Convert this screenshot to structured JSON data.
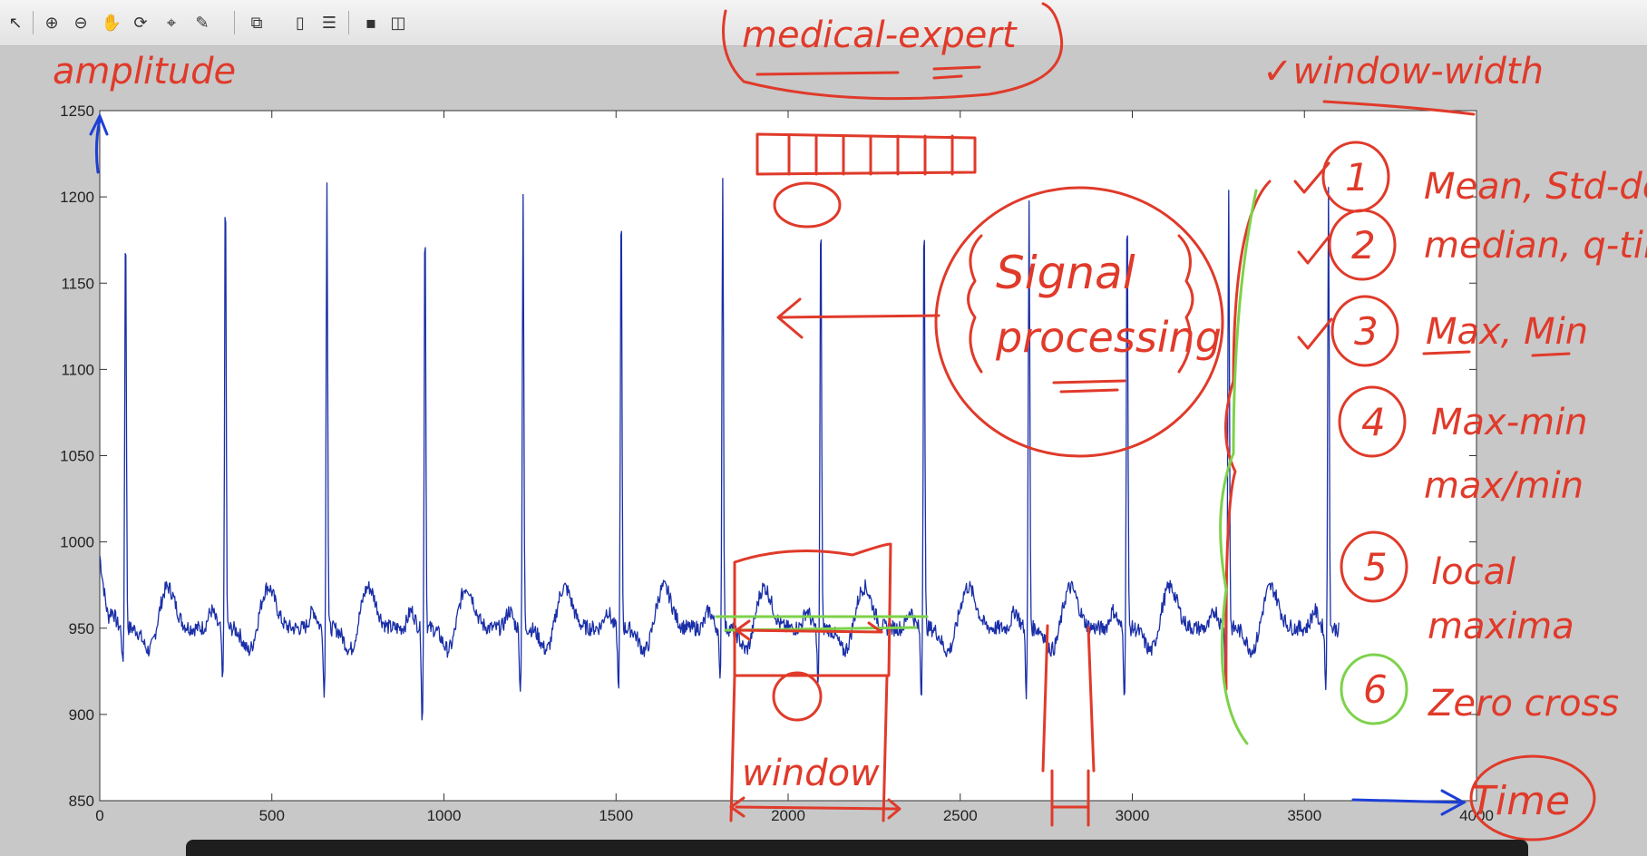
{
  "toolbar": {
    "buttons": [
      {
        "name": "select-pointer-icon",
        "glyph": "↖"
      },
      {
        "name": "zoom-in-icon",
        "glyph": "⊕"
      },
      {
        "name": "zoom-out-icon",
        "glyph": "⊖"
      },
      {
        "name": "pan-hand-icon",
        "glyph": "✋"
      },
      {
        "name": "rotate-3d-icon",
        "glyph": "⟳"
      },
      {
        "name": "data-cursor-icon",
        "glyph": "⌖"
      },
      {
        "name": "brush-icon",
        "glyph": "✎"
      },
      {
        "name": "link-plot-icon",
        "glyph": "⧉"
      },
      {
        "name": "colorbar-icon",
        "glyph": "▯"
      },
      {
        "name": "legend-icon",
        "glyph": "☰"
      },
      {
        "name": "hide-plot-tools-icon",
        "glyph": "▪"
      },
      {
        "name": "show-plot-tools-icon",
        "glyph": "◫"
      }
    ]
  },
  "chart_data": {
    "type": "line",
    "title": "",
    "xlabel": "",
    "ylabel": "",
    "xlim": [
      0,
      4000
    ],
    "ylim": [
      850,
      1250
    ],
    "xticks": [
      0,
      500,
      1000,
      1500,
      2000,
      2500,
      3000,
      3500,
      4000
    ],
    "yticks": [
      850,
      900,
      950,
      1000,
      1050,
      1100,
      1150,
      1200,
      1250
    ],
    "grid": false,
    "series_color": "#1a2fa8",
    "baseline": 950,
    "beats": [
      {
        "x": 75,
        "peak": 1193,
        "trough": 928
      },
      {
        "x": 365,
        "peak": 1210,
        "trough": 918
      },
      {
        "x": 660,
        "peak": 1212,
        "trough": 910
      },
      {
        "x": 945,
        "peak": 1195,
        "trough": 895
      },
      {
        "x": 1230,
        "peak": 1198,
        "trough": 912
      },
      {
        "x": 1515,
        "peak": 1201,
        "trough": 915
      },
      {
        "x": 1810,
        "peak": 1210,
        "trough": 918
      },
      {
        "x": 2095,
        "peak": 1200,
        "trough": 915
      },
      {
        "x": 2395,
        "peak": 1200,
        "trough": 910
      },
      {
        "x": 2700,
        "peak": 1198,
        "trough": 912
      },
      {
        "x": 2985,
        "peak": 1202,
        "trough": 912
      },
      {
        "x": 3280,
        "peak": 1205,
        "trough": 912
      },
      {
        "x": 3570,
        "peak": 1203,
        "trough": 915
      }
    ],
    "x_end": 3600
  },
  "annotations": {
    "amplitude": "amplitude",
    "medical_expert": "medical-expert",
    "window_width": "✓window-width",
    "signal_processing_1": "Signal",
    "signal_processing_2": "processing",
    "time": "Time",
    "window": "window",
    "list": [
      {
        "num": "1",
        "text": "Mean, Std-dev"
      },
      {
        "num": "2",
        "text": "median, q-tile"
      },
      {
        "num": "3",
        "text": "Max, Min"
      },
      {
        "num": "4",
        "text": "Max-min"
      },
      {
        "num": "",
        "text": "max/min"
      },
      {
        "num": "5",
        "text": "local"
      },
      {
        "num": "",
        "text": "maxima"
      },
      {
        "num": "6",
        "text": "Zero cross"
      }
    ]
  }
}
